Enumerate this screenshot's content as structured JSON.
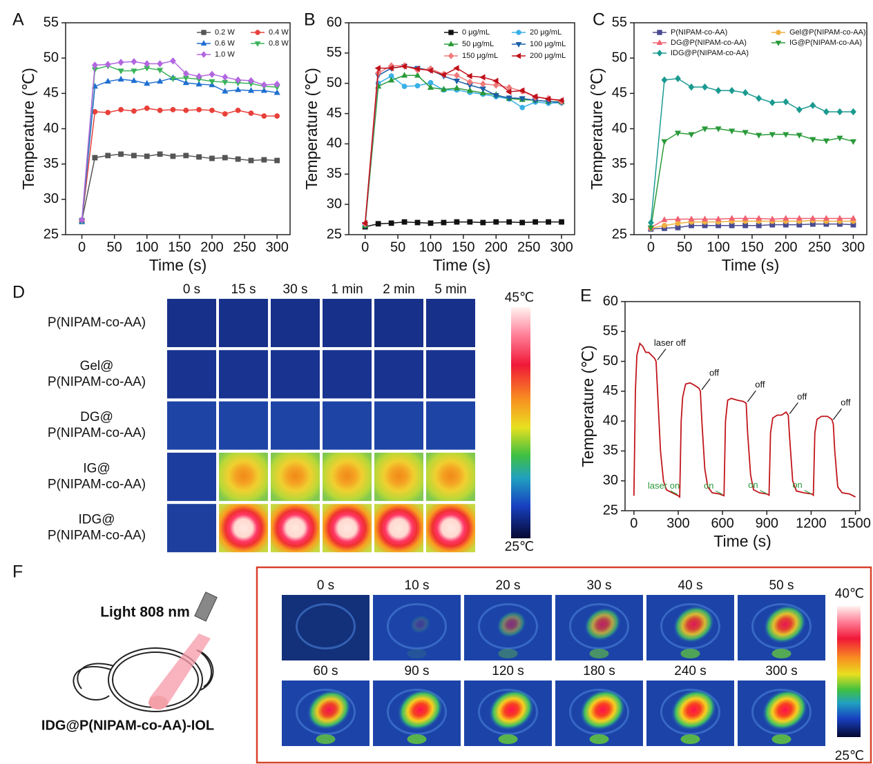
{
  "chart_data": [
    {
      "type": "line",
      "panel_label": "A",
      "x_label": "Time (s)",
      "y_label": "Temperature (℃)",
      "x": [
        0,
        20,
        40,
        60,
        80,
        100,
        120,
        140,
        160,
        180,
        200,
        220,
        240,
        260,
        280,
        300
      ],
      "xlim": [
        -25,
        320
      ],
      "xticks": [
        0,
        50,
        100,
        150,
        200,
        250,
        300
      ],
      "ylim": [
        25,
        55
      ],
      "yticks": [
        25,
        30,
        35,
        40,
        45,
        50,
        55
      ],
      "series": [
        {
          "name": "0.2 W",
          "color": "#555555",
          "marker": "square",
          "values": [
            27,
            35.9,
            36.2,
            36.4,
            36.2,
            36.1,
            36.4,
            36.1,
            36.2,
            36,
            35.8,
            35.9,
            35.7,
            35.5,
            35.6,
            35.5
          ]
        },
        {
          "name": "0.4 W",
          "color": "#e8403a",
          "marker": "circle",
          "values": [
            27,
            42.4,
            42.3,
            42.7,
            42.5,
            42.9,
            42.6,
            42.7,
            42.6,
            42.7,
            42.6,
            42.1,
            42.6,
            42.2,
            41.8,
            41.8
          ]
        },
        {
          "name": "0.6 W",
          "color": "#1f6fd0",
          "marker": "triangle",
          "values": [
            26.8,
            46,
            46.7,
            47,
            46.8,
            46.4,
            46.7,
            47.2,
            46.5,
            46.3,
            46.2,
            45.3,
            45.5,
            45.4,
            45.4,
            45.1
          ]
        },
        {
          "name": "0.8 W",
          "color": "#3bb35a",
          "marker": "triangle-down",
          "values": [
            26.9,
            48.4,
            48.9,
            48.2,
            48.2,
            48.6,
            48.3,
            47.1,
            47.2,
            47,
            46.7,
            46.6,
            46.5,
            46.4,
            46,
            45.9
          ]
        },
        {
          "name": "1.0 W",
          "color": "#b266e0",
          "marker": "diamond",
          "values": [
            27.1,
            49,
            49.1,
            49.4,
            49.5,
            49.2,
            49.2,
            49.6,
            47.8,
            47.4,
            47.7,
            47.3,
            46.9,
            46.8,
            46.2,
            46.3
          ]
        }
      ]
    },
    {
      "type": "line",
      "panel_label": "B",
      "x_label": "Time (s)",
      "y_label": "Temperature (℃)",
      "x": [
        0,
        20,
        40,
        60,
        80,
        100,
        120,
        140,
        160,
        180,
        200,
        220,
        240,
        260,
        280,
        300
      ],
      "xlim": [
        -25,
        320
      ],
      "xticks": [
        0,
        50,
        100,
        150,
        200,
        250,
        300
      ],
      "ylim": [
        25,
        60
      ],
      "yticks": [
        25,
        30,
        35,
        40,
        45,
        50,
        55,
        60
      ],
      "series": [
        {
          "name": "0 μg/mL",
          "color": "#111111",
          "marker": "square",
          "values": [
            26.3,
            26.8,
            26.9,
            27.1,
            27,
            26.9,
            27,
            27.1,
            27.1,
            27,
            27.1,
            27.1,
            27,
            27.1,
            27.1,
            27.1
          ]
        },
        {
          "name": "20 μg/mL",
          "color": "#3ab0e8",
          "marker": "circle",
          "values": [
            26.5,
            50,
            51.2,
            49.5,
            49.6,
            50.1,
            48.9,
            48.9,
            48.5,
            48.2,
            47.8,
            47.4,
            46,
            46.9,
            46.7,
            46.8
          ]
        },
        {
          "name": "50 μg/mL",
          "color": "#2a9a3a",
          "marker": "triangle",
          "values": [
            26.5,
            49.5,
            50.5,
            51.3,
            51.3,
            49.3,
            49,
            49.2,
            48.8,
            48.4,
            48.1,
            47.5,
            47.3,
            47.2,
            47,
            46.9
          ]
        },
        {
          "name": "100 μg/mL",
          "color": "#1a5ea8",
          "marker": "triangle-down",
          "values": [
            26.7,
            51.3,
            52.5,
            52.8,
            52.5,
            52.2,
            51.2,
            50.4,
            49.7,
            49.1,
            48,
            47.6,
            47.5,
            47.2,
            47,
            46.8
          ]
        },
        {
          "name": "150 μg/mL",
          "color": "#f07a7a",
          "marker": "diamond",
          "values": [
            26.8,
            51.7,
            52.9,
            52.9,
            52.2,
            52.4,
            51.5,
            51.3,
            50.2,
            49.9,
            49.7,
            49.3,
            48.7,
            47.7,
            47.5,
            47
          ]
        },
        {
          "name": "200 μg/mL",
          "color": "#c0101a",
          "marker": "triangle-left",
          "values": [
            26.9,
            52.5,
            52.5,
            52.8,
            52.4,
            52.1,
            51.4,
            52.5,
            51.2,
            51,
            50.4,
            48.6,
            48.8,
            47.8,
            47.4,
            47.2
          ]
        }
      ]
    },
    {
      "type": "line",
      "panel_label": "C",
      "x_label": "Time (s)",
      "y_label": "Temperature (℃)",
      "x": [
        0,
        20,
        40,
        60,
        80,
        100,
        120,
        140,
        160,
        180,
        200,
        220,
        240,
        260,
        280,
        300
      ],
      "xlim": [
        -25,
        320
      ],
      "xticks": [
        0,
        50,
        100,
        150,
        200,
        250,
        300
      ],
      "ylim": [
        25,
        55
      ],
      "yticks": [
        25,
        30,
        35,
        40,
        45,
        50,
        55
      ],
      "series": [
        {
          "name": "P(NIPAM-co-AA)",
          "color": "#4a4a90",
          "marker": "square",
          "values": [
            25.8,
            25.9,
            26,
            26.3,
            26.3,
            26.3,
            26.3,
            26.3,
            26.3,
            26.4,
            26.4,
            26.4,
            26.5,
            26.5,
            26.5,
            26.4
          ]
        },
        {
          "name": "Gel@P(NIPAM-co-AA)",
          "color": "#f0b040",
          "marker": "circle",
          "values": [
            25.9,
            26.3,
            26.6,
            26.8,
            26.8,
            26.8,
            26.9,
            26.9,
            26.9,
            26.9,
            26.9,
            26.9,
            27,
            26.9,
            26.9,
            26.9
          ]
        },
        {
          "name": "DG@P(NIPAM-co-AA)",
          "color": "#f06070",
          "marker": "triangle",
          "values": [
            26,
            27.1,
            27.2,
            27.2,
            27.2,
            27.2,
            27.3,
            27.3,
            27.3,
            27.2,
            27.3,
            27.3,
            27.3,
            27.3,
            27.3,
            27.3
          ]
        },
        {
          "name": "IG@P(NIPAM-co-AA)",
          "color": "#2a9a3a",
          "marker": "triangle-down",
          "values": [
            26,
            38.2,
            39.4,
            39.2,
            40,
            40,
            39.7,
            39.5,
            39.1,
            39.2,
            39.2,
            39.1,
            38.5,
            38.3,
            38.7,
            38.2
          ]
        },
        {
          "name": "IDG@P(NIPAM-co-AA)",
          "color": "#1a9a90",
          "marker": "diamond",
          "values": [
            26.7,
            46.9,
            47.1,
            45.9,
            45.9,
            45.4,
            45.4,
            45.1,
            44.3,
            43.7,
            43.8,
            42.7,
            43.3,
            42.4,
            42.4,
            42.4
          ]
        }
      ]
    },
    {
      "type": "line",
      "panel_label": "E",
      "x_label": "Time (s)",
      "y_label": "Temperature (℃)",
      "x": [
        0,
        10,
        20,
        40,
        60,
        80,
        100,
        120,
        140,
        150,
        160,
        180,
        200,
        220,
        260,
        300,
        310,
        320,
        330,
        350,
        380,
        410,
        440,
        450,
        460,
        480,
        500,
        530,
        580,
        610,
        620,
        635,
        660,
        700,
        740,
        760,
        770,
        790,
        810,
        850,
        900,
        915,
        925,
        940,
        970,
        1000,
        1030,
        1045,
        1055,
        1075,
        1100,
        1150,
        1205,
        1215,
        1225,
        1240,
        1270,
        1310,
        1340,
        1350,
        1360,
        1380,
        1410,
        1460,
        1500
      ],
      "xlim": [
        -60,
        1530
      ],
      "xticks": [
        0,
        300,
        600,
        900,
        1200,
        1500
      ],
      "ylim": [
        25,
        60
      ],
      "yticks": [
        25,
        30,
        35,
        40,
        45,
        50,
        55,
        60
      ],
      "series": [
        {
          "color": "#c0141a",
          "values": [
            27.5,
            45,
            51,
            53,
            52.5,
            51.5,
            51.5,
            51,
            50.5,
            50,
            45,
            35,
            30,
            28.5,
            28,
            27.5,
            27.3,
            40,
            44,
            46.2,
            46.4,
            46,
            45.5,
            45,
            40,
            32,
            29,
            28,
            27.8,
            27.5,
            40,
            43.5,
            43.8,
            43.5,
            43.3,
            43,
            38,
            31,
            28.5,
            28,
            27.8,
            27.6,
            38,
            40.5,
            41,
            41,
            41.5,
            41,
            37,
            30,
            28.3,
            28,
            27.8,
            27.6,
            38,
            40.3,
            40.8,
            40.8,
            40.3,
            39.5,
            35,
            29,
            28,
            27.8,
            27.3
          ]
        }
      ],
      "annotations": [
        {
          "text": "laser off",
          "x": 150,
          "y": 50,
          "color": "#111111"
        },
        {
          "text": "off",
          "x": 450,
          "y": 45,
          "color": "#111111"
        },
        {
          "text": "off",
          "x": 760,
          "y": 43,
          "color": "#111111"
        },
        {
          "text": "off",
          "x": 1045,
          "y": 41,
          "color": "#111111"
        },
        {
          "text": "off",
          "x": 1340,
          "y": 40,
          "color": "#111111"
        },
        {
          "text": "laser on",
          "x": 305,
          "y": 27.5,
          "color": "#2a9a3a"
        },
        {
          "text": "on",
          "x": 610,
          "y": 27.5,
          "color": "#2a9a3a"
        },
        {
          "text": "on",
          "x": 910,
          "y": 27.6,
          "color": "#2a9a3a"
        },
        {
          "text": "on",
          "x": 1210,
          "y": 27.6,
          "color": "#2a9a3a"
        }
      ]
    }
  ],
  "panel_d": {
    "panel_label": "D",
    "columns": [
      "0 s",
      "15 s",
      "30 s",
      "1 min",
      "2 min",
      "5 min"
    ],
    "rows": [
      [
        "P(NIPAM-co-AA)"
      ],
      [
        "Gel@",
        "P(NIPAM-co-AA)"
      ],
      [
        "DG@",
        "P(NIPAM-co-AA)"
      ],
      [
        "IG@",
        "P(NIPAM-co-AA)"
      ],
      [
        "IDG@",
        "P(NIPAM-co-AA)"
      ]
    ],
    "colorbar": [
      "45℃",
      "25℃"
    ]
  },
  "panel_f": {
    "panel_label": "F",
    "light": "Light 808 nm",
    "caption": "IDG@P(NIPAM-co-AA)-IOL",
    "times": [
      "0 s",
      "10 s",
      "20 s",
      "30 s",
      "40 s",
      "50 s",
      "60 s",
      "90 s",
      "120 s",
      "180 s",
      "240 s",
      "300 s"
    ],
    "colorbar": [
      "40℃",
      "25℃"
    ]
  }
}
